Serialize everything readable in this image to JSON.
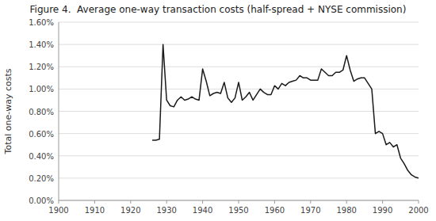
{
  "chart_data": {
    "type": "line",
    "title": "Figure 4.  Average one-way transaction costs (half-spread + NYSE commission)",
    "ylabel": "Total one-way costs",
    "x": [
      1926,
      1927,
      1928,
      1929,
      1930,
      1931,
      1932,
      1933,
      1934,
      1935,
      1936,
      1937,
      1938,
      1939,
      1940,
      1941,
      1942,
      1943,
      1944,
      1945,
      1946,
      1947,
      1948,
      1949,
      1950,
      1951,
      1952,
      1953,
      1954,
      1955,
      1956,
      1957,
      1958,
      1959,
      1960,
      1961,
      1962,
      1963,
      1964,
      1965,
      1966,
      1967,
      1968,
      1969,
      1970,
      1971,
      1972,
      1973,
      1974,
      1975,
      1976,
      1977,
      1978,
      1979,
      1980,
      1981,
      1982,
      1983,
      1984,
      1985,
      1986,
      1987,
      1988,
      1989,
      1990,
      1991,
      1992,
      1993,
      1994,
      1995,
      1996,
      1997,
      1998,
      1999,
      2000
    ],
    "values": [
      0.0054,
      0.0054,
      0.0055,
      0.014,
      0.009,
      0.0085,
      0.0084,
      0.009,
      0.0093,
      0.009,
      0.0091,
      0.0093,
      0.0091,
      0.009,
      0.0118,
      0.0107,
      0.0094,
      0.0096,
      0.0097,
      0.0096,
      0.0106,
      0.0092,
      0.0088,
      0.0092,
      0.0106,
      0.009,
      0.0093,
      0.0097,
      0.009,
      0.0095,
      0.01,
      0.0097,
      0.0095,
      0.0095,
      0.0103,
      0.01,
      0.0105,
      0.0103,
      0.0106,
      0.0107,
      0.0108,
      0.0112,
      0.011,
      0.011,
      0.0108,
      0.0108,
      0.0108,
      0.0118,
      0.0115,
      0.0112,
      0.0112,
      0.0115,
      0.0115,
      0.0117,
      0.013,
      0.0117,
      0.0107,
      0.0109,
      0.011,
      0.011,
      0.0105,
      0.01,
      0.006,
      0.0062,
      0.006,
      0.005,
      0.0052,
      0.0048,
      0.005,
      0.0038,
      0.0033,
      0.0027,
      0.0023,
      0.0021,
      0.002
    ],
    "color": "#1a1a1a",
    "xlim": [
      1900,
      2000
    ],
    "ylim": [
      0.0,
      0.016
    ],
    "xticks": [
      1900,
      1910,
      1920,
      1930,
      1940,
      1950,
      1960,
      1970,
      1980,
      1990,
      2000
    ],
    "yticks": [
      {
        "value": 0.0,
        "label": "0.00%"
      },
      {
        "value": 0.002,
        "label": "0.20%"
      },
      {
        "value": 0.004,
        "label": "0.40%"
      },
      {
        "value": 0.006,
        "label": "0.60%"
      },
      {
        "value": 0.008,
        "label": "0.80%"
      },
      {
        "value": 0.01,
        "label": "1.00%"
      },
      {
        "value": 0.012,
        "label": "1.20%"
      },
      {
        "value": 0.014,
        "label": "1.40%"
      },
      {
        "value": 0.016,
        "label": "1.60%"
      }
    ],
    "grid": true
  }
}
